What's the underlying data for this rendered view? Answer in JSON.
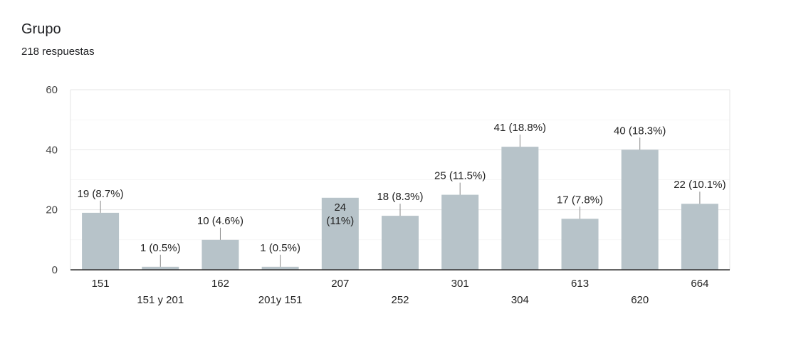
{
  "card": {
    "title": "Grupo",
    "subtitle": "218 respuestas"
  },
  "chart_data": {
    "type": "bar",
    "categories": [
      "151",
      "151 y 201",
      "162",
      "201y 151",
      "207",
      "252",
      "301",
      "304",
      "613",
      "620",
      "664"
    ],
    "values": [
      19,
      1,
      10,
      1,
      24,
      18,
      25,
      41,
      17,
      40,
      22
    ],
    "data_labels": [
      "19 (8.7%)",
      "1 (0.5%)",
      "10 (4.6%)",
      "1 (0.5%)",
      "24 (11%)",
      "18 (8.3%)",
      "25 (11.5%)",
      "41 (18.8%)",
      "17 (7.8%)",
      "40 (18.3%)",
      "22 (10.1%)"
    ],
    "ylim": [
      0,
      60
    ],
    "yticks": [
      0,
      20,
      40,
      60
    ],
    "grid": true,
    "bar_color": "#b7c3c9",
    "axis_color": "#333333",
    "grid_color": "#e6e6e6",
    "label_color": "#222222"
  }
}
